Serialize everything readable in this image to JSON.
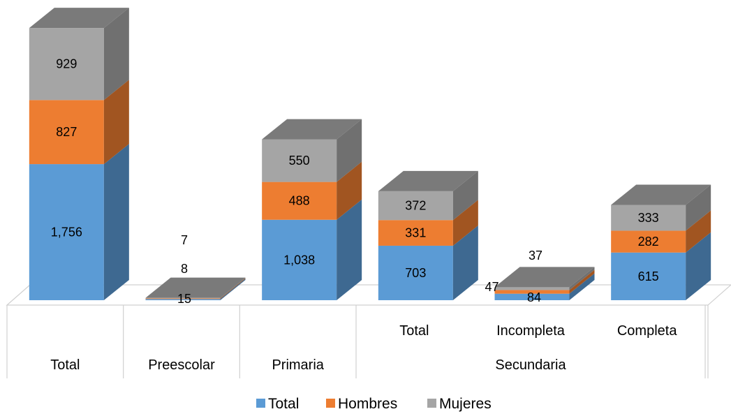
{
  "chart_data": {
    "type": "bar",
    "subtype": "stacked-3d",
    "legend_position": "bottom",
    "grid": false,
    "categories": [
      {
        "label": "Total",
        "group": ""
      },
      {
        "label": "Preescolar",
        "group": ""
      },
      {
        "label": "Primaria",
        "group": ""
      },
      {
        "label": "Total",
        "group": "Secundaria"
      },
      {
        "label": "Incompleta",
        "group": "Secundaria"
      },
      {
        "label": "Completa",
        "group": "Secundaria"
      }
    ],
    "group_labels": [
      {
        "label": "Secundaria",
        "from": 3,
        "to": 5
      }
    ],
    "series": [
      {
        "name": "Total",
        "values": [
          1756,
          15,
          1038,
          703,
          84,
          615
        ],
        "labels": [
          "1,756",
          "15",
          "1,038",
          "703",
          "84",
          "615"
        ],
        "color": "#5b9bd5"
      },
      {
        "name": "Hombres",
        "values": [
          827,
          8,
          488,
          331,
          47,
          282
        ],
        "labels": [
          "827",
          "8",
          "488",
          "331",
          "47",
          "282"
        ],
        "color": "#ed7d31"
      },
      {
        "name": "Mujeres",
        "values": [
          929,
          7,
          550,
          372,
          37,
          333
        ],
        "labels": [
          "929",
          "7",
          "550",
          "372",
          "37",
          "333"
        ],
        "color": "#a5a5a5"
      }
    ]
  }
}
